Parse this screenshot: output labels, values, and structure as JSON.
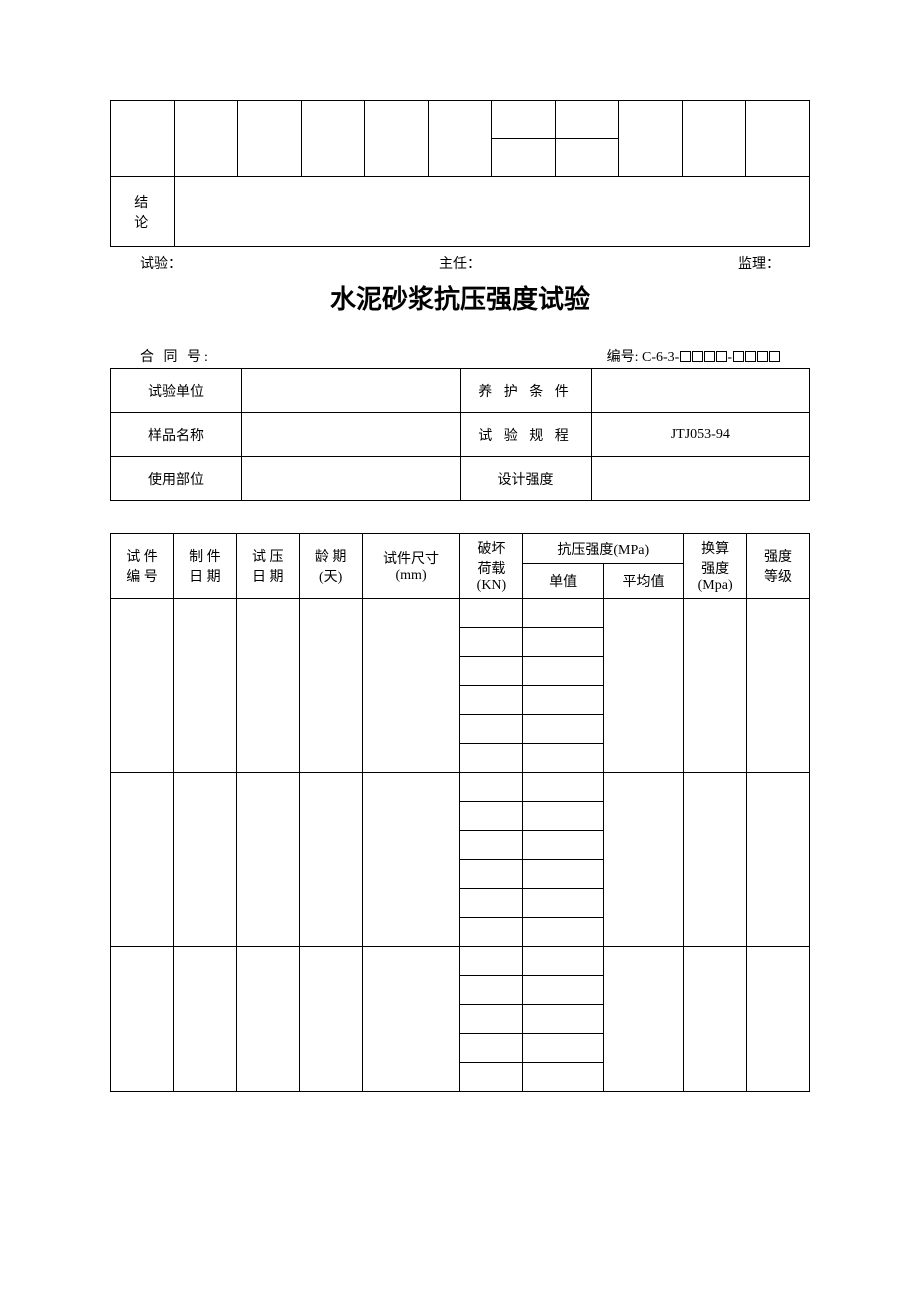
{
  "top_table": {
    "conclusion_label": "结 论"
  },
  "signatures": {
    "test": "试验：",
    "director": "主任：",
    "supervisor": "监理："
  },
  "title": "水泥砂浆抗压强度试验",
  "header": {
    "contract_label": "合 同 号:",
    "serial_prefix": "编号: C-6-3-"
  },
  "info": {
    "test_unit_label": "试验单位",
    "test_unit_value": "",
    "curing_label": "养 护 条 件",
    "curing_value": "",
    "sample_name_label": "样品名称",
    "sample_name_value": "",
    "test_spec_label": "试 验 规 程",
    "test_spec_value": "JTJ053-94",
    "use_part_label": "使用部位",
    "use_part_value": "",
    "design_strength_label": "设计强度",
    "design_strength_value": ""
  },
  "columns": {
    "specimen_no": "试 件\n编 号",
    "make_date": "制 件\n日 期",
    "test_date": "试 压\n日 期",
    "age": "龄 期\n(天)",
    "size": "试件尺寸\n(mm)",
    "load": "破坏\n荷载\n(KN)",
    "strength_group": "抗压强度(MPa)",
    "single": "单值",
    "avg": "平均值",
    "converted": "换算\n强度\n(Mpa)",
    "grade": "强度\n等级"
  },
  "group_row_count": 6,
  "group_count": 3
}
